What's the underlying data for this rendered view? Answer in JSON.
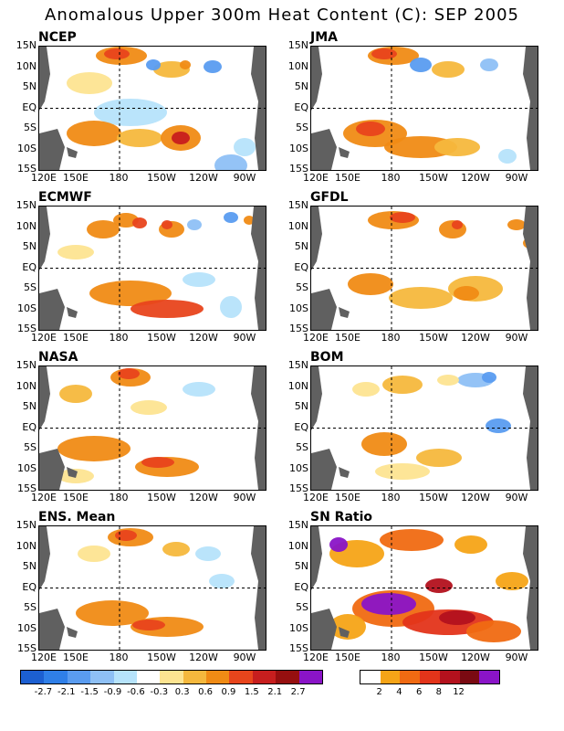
{
  "title": "Anomalous Upper 300m Heat Content (C): SEP 2005",
  "lat_labels": [
    "15N",
    "10N",
    "5N",
    "EQ",
    "5S",
    "10S",
    "15S"
  ],
  "lon_labels": [
    "120E",
    "150E",
    "180",
    "150W",
    "120W",
    "90W"
  ],
  "panels": [
    {
      "label": "NCEP"
    },
    {
      "label": "JMA"
    },
    {
      "label": "ECMWF"
    },
    {
      "label": "GFDL"
    },
    {
      "label": "NASA"
    },
    {
      "label": "BOM"
    },
    {
      "label": "ENS. Mean"
    },
    {
      "label": "SN Ratio"
    }
  ],
  "colorbar_anomaly": {
    "colors": [
      "#1c5fd1",
      "#2f7fe8",
      "#5a9cf0",
      "#8ec0f5",
      "#b6e3fb",
      "#ffffff",
      "#fde491",
      "#f5b83d",
      "#f08b15",
      "#e8451c",
      "#c71e1e",
      "#960f0f",
      "#8a14c7"
    ],
    "ticks": [
      "-2.7",
      "-2.1",
      "-1.5",
      "-0.9",
      "-0.6",
      "-0.3",
      "0.3",
      "0.6",
      "0.9",
      "1.5",
      "2.1",
      "2.7"
    ]
  },
  "colorbar_sn": {
    "colors": [
      "#ffffff",
      "#f5a417",
      "#f06a12",
      "#e3341a",
      "#b3111d",
      "#7a0a12",
      "#8a14c7"
    ],
    "ticks": [
      "2",
      "4",
      "6",
      "8",
      "12"
    ]
  },
  "colors": {
    "land": "#606060",
    "warm": "#f08b15",
    "cool": "#8ec0f5"
  }
}
